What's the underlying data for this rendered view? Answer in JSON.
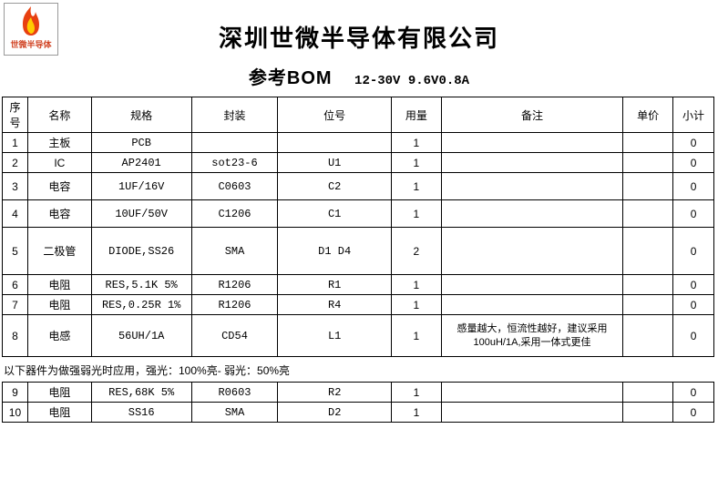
{
  "logo": {
    "text": "世微半导体"
  },
  "header": {
    "company_title": "深圳世微半导体有限公司",
    "doc_title": "参考BOM",
    "spec": "12-30V 9.6V0.8A"
  },
  "columns": {
    "seq": "序号",
    "name": "名称",
    "spec": "规格",
    "package": "封装",
    "ref": "位号",
    "qty": "用量",
    "note": "备注",
    "price": "单价",
    "subtotal": "小计"
  },
  "rows_top": [
    {
      "seq": "1",
      "name": "主板",
      "spec": "PCB",
      "pkg": "",
      "ref": "",
      "qty": "1",
      "note": "",
      "price": "",
      "sub": "0",
      "h": "r-sm"
    },
    {
      "seq": "2",
      "name": "IC",
      "spec": "AP2401",
      "pkg": "sot23-6",
      "ref": "U1",
      "qty": "1",
      "note": "",
      "price": "",
      "sub": "0",
      "h": "r-sm"
    },
    {
      "seq": "3",
      "name": "电容",
      "spec": "1UF/16V",
      "pkg": "C0603",
      "ref": "C2",
      "qty": "1",
      "note": "",
      "price": "",
      "sub": "0",
      "h": "r-md"
    },
    {
      "seq": "4",
      "name": "电容",
      "spec": "10UF/50V",
      "pkg": "C1206",
      "ref": "C1",
      "qty": "1",
      "note": "",
      "price": "",
      "sub": "0",
      "h": "r-md"
    },
    {
      "seq": "5",
      "name": "二极管",
      "spec": "DIODE,SS26",
      "pkg": "SMA",
      "ref": "D1 D4",
      "qty": "2",
      "note": "",
      "price": "",
      "sub": "0",
      "h": "r-lg"
    },
    {
      "seq": "6",
      "name": "电阻",
      "spec": "RES,5.1K 5%",
      "pkg": "R1206",
      "ref": "R1",
      "qty": "1",
      "note": "",
      "price": "",
      "sub": "0",
      "h": "r-sm"
    },
    {
      "seq": "7",
      "name": "电阻",
      "spec": "RES,0.25R 1%",
      "pkg": "R1206",
      "ref": "R4",
      "qty": "1",
      "note": "",
      "price": "",
      "sub": "0",
      "h": "r-sm"
    },
    {
      "seq": "8",
      "name": "电感",
      "spec": "56UH/1A",
      "pkg": "CD54",
      "ref": "L1",
      "qty": "1",
      "note": "感量越大，恒流性越好，建议采用100uH/1A,采用一体式更佳",
      "price": "",
      "sub": "0",
      "h": "r-xl"
    }
  ],
  "section_note": "以下器件为做强弱光时应用，强光：100%亮-  弱光：50%亮",
  "rows_bottom": [
    {
      "seq": "9",
      "name": "电阻",
      "spec": "RES,68K 5%",
      "pkg": "R0603",
      "ref": "R2",
      "qty": "1",
      "note": "",
      "price": "",
      "sub": "0",
      "h": "r-sm"
    },
    {
      "seq": "10",
      "name": "电阻",
      "spec": "SS16",
      "pkg": "SMA",
      "ref": "D2",
      "qty": "1",
      "note": "",
      "price": "",
      "sub": "0",
      "h": "r-sm"
    }
  ],
  "colors": {
    "flame_outer": "#e84010",
    "flame_inner": "#ffcc00",
    "border": "#000000",
    "logo_border": "#999999"
  }
}
